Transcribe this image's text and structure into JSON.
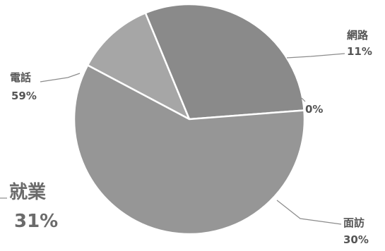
{
  "chart_data": {
    "type": "pie",
    "title": "",
    "slices": [
      {
        "label": "網路",
        "value": 11,
        "value_label": "11%",
        "color": "#a6a6a6"
      },
      {
        "label": "",
        "value": 0,
        "value_label": "0%",
        "color": "#9a9a9a"
      },
      {
        "label": "面訪",
        "value": 30,
        "value_label": "30%",
        "color": "#8a8a8a"
      },
      {
        "label": "電話",
        "value": 59,
        "value_label": "59%",
        "color": "#969696"
      }
    ],
    "annotation": {
      "label": "就業",
      "value_label": "31%"
    },
    "slice_border_color": "#ffffff"
  }
}
